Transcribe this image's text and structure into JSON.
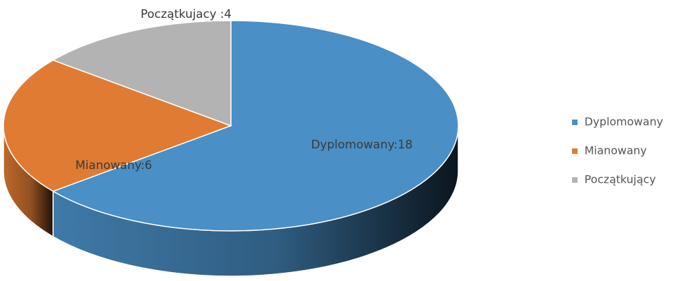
{
  "chart_data": {
    "type": "pie",
    "categories": [
      "Dyplomowany",
      "Mianowany",
      "Początkujący"
    ],
    "values": [
      18,
      6,
      4
    ],
    "value_labels": [
      "Dyplomowany:18",
      "Mianowany:6",
      "Początkujacy :4"
    ],
    "colors": [
      "#4a8fc6",
      "#e07b33",
      "#b3b3b3"
    ],
    "legend": "right"
  }
}
